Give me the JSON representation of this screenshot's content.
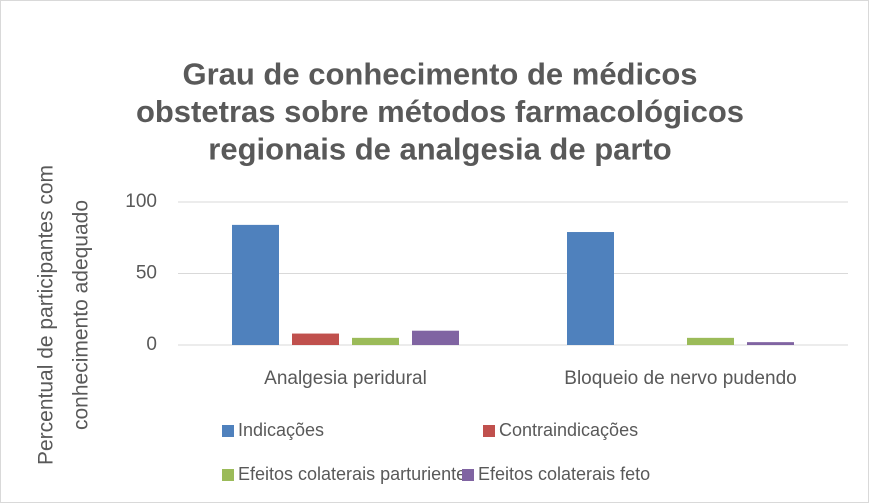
{
  "chart_data": {
    "type": "bar",
    "title": "Grau de conhecimento de médicos obstetras sobre métodos farmacológicos regionais de analgesia de parto",
    "y_label": "Percentual de participantes com conhecimento adequado",
    "categories": [
      "Analgesia peridural",
      "Bloqueio de nervo pudendo"
    ],
    "series": [
      {
        "name": "Indicações",
        "color": "#4f81bd",
        "values": [
          84,
          79
        ]
      },
      {
        "name": "Contraindicações",
        "color": "#c0504d",
        "values": [
          8,
          0
        ]
      },
      {
        "name": "Efeitos colaterais parturiente",
        "color": "#9bbb59",
        "values": [
          5,
          5
        ]
      },
      {
        "name": "Efeitos colaterais feto",
        "color": "#8064a2",
        "values": [
          10,
          2
        ]
      }
    ],
    "ylim": [
      0,
      100
    ],
    "yticks": [
      0,
      50,
      100
    ],
    "grid": true,
    "legend": "bottom"
  }
}
